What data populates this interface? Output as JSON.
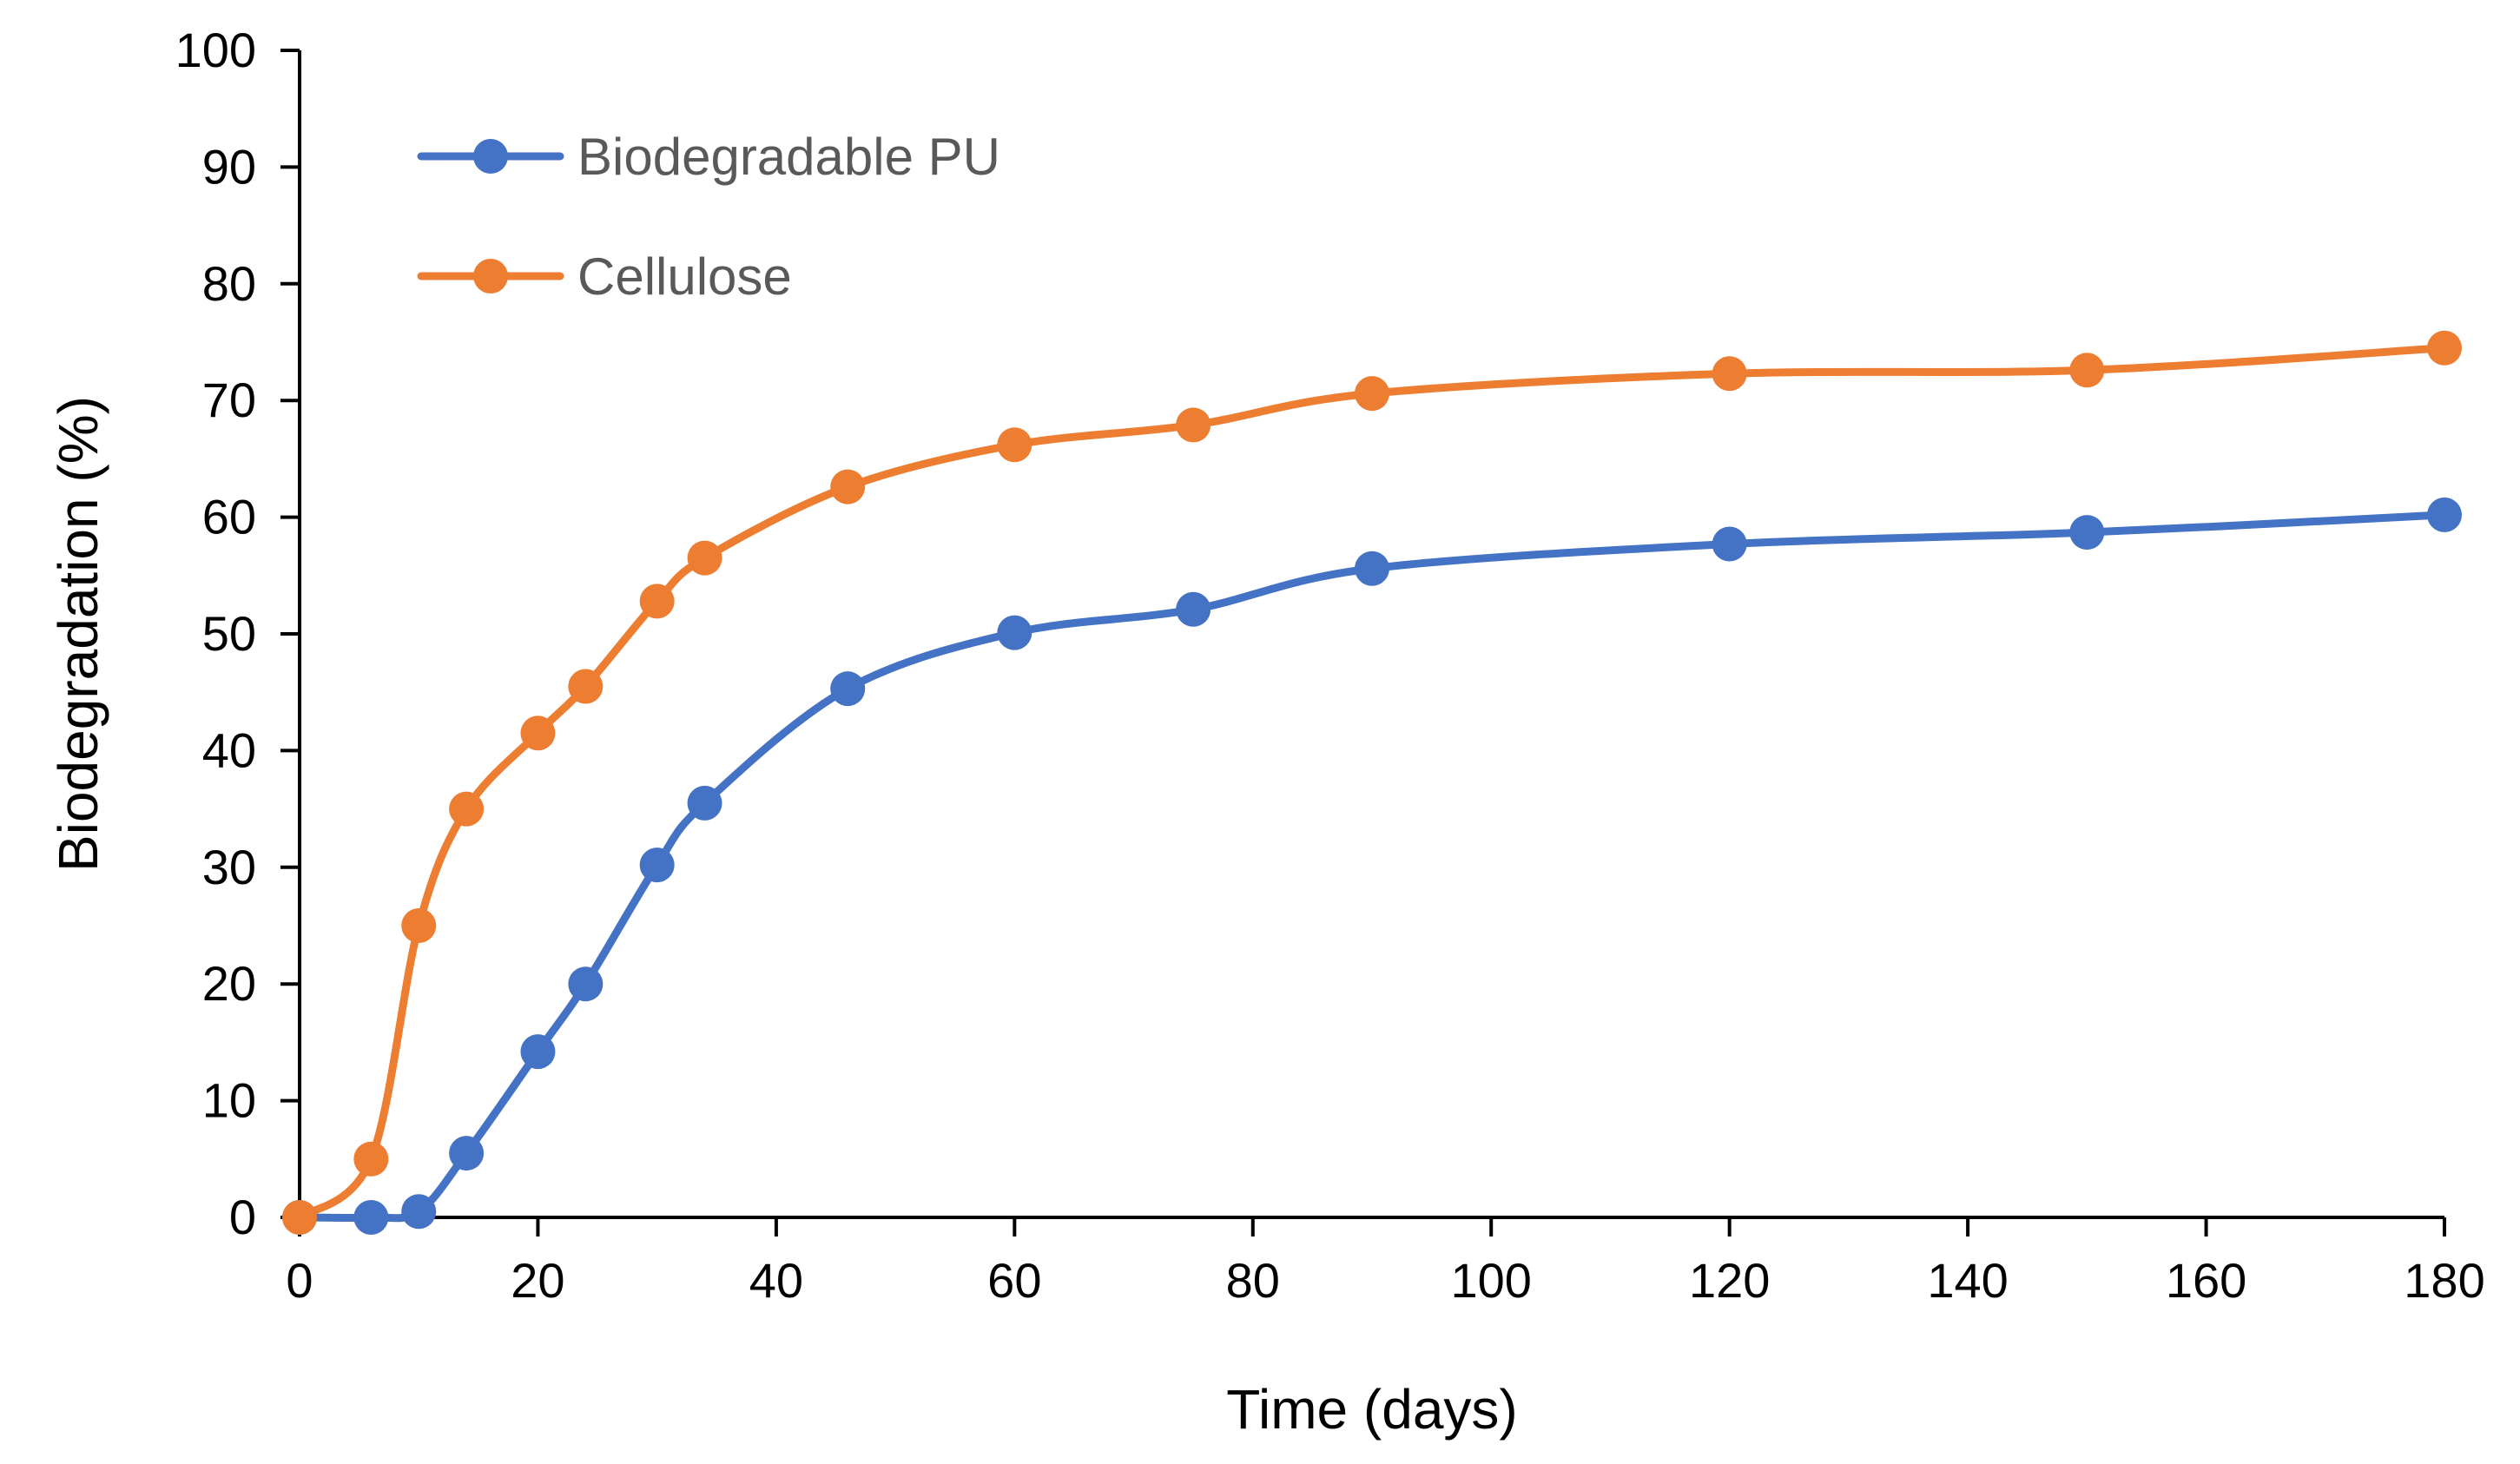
{
  "chart_data": {
    "type": "line",
    "title": "",
    "xlabel": "Time (days)",
    "ylabel": "Biodegradation (%)",
    "xlim": [
      0,
      180
    ],
    "ylim": [
      0,
      100
    ],
    "x_ticks": [
      0,
      20,
      40,
      60,
      80,
      100,
      120,
      140,
      160,
      180
    ],
    "y_ticks": [
      0,
      10,
      20,
      30,
      40,
      50,
      60,
      70,
      80,
      90,
      100
    ],
    "grid": false,
    "smooth": true,
    "legend_position": "top-left",
    "series": [
      {
        "name": "Biodegradable PU",
        "color": "#4472C4",
        "marker": "circle",
        "x": [
          0,
          6,
          10,
          14,
          20,
          24,
          30,
          34,
          46,
          60,
          75,
          90,
          120,
          150,
          180
        ],
        "y": [
          0,
          0,
          0.5,
          5.5,
          14.2,
          20,
          30.2,
          35.5,
          45.3,
          50.1,
          52.1,
          55.6,
          57.7,
          58.7,
          60.2
        ]
      },
      {
        "name": "Cellulose",
        "color": "#ED7D31",
        "marker": "circle",
        "x": [
          0,
          6,
          10,
          14,
          20,
          24,
          30,
          34,
          46,
          60,
          75,
          90,
          120,
          150,
          180
        ],
        "y": [
          0,
          5,
          25,
          35,
          41.5,
          45.5,
          52.8,
          56.5,
          62.6,
          66.2,
          67.9,
          70.6,
          72.3,
          72.6,
          74.5
        ]
      }
    ]
  }
}
